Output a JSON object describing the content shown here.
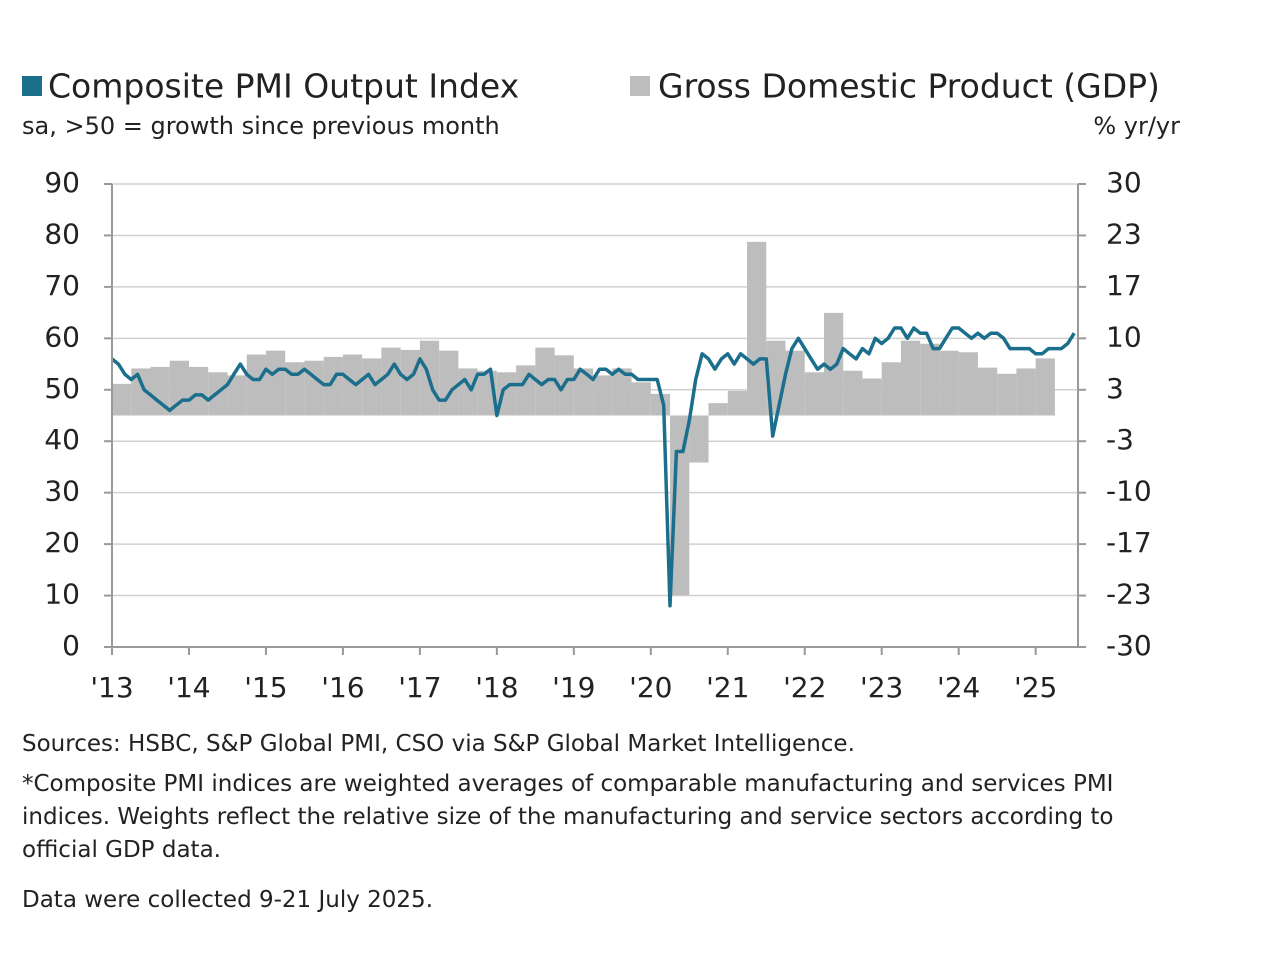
{
  "chart_data": {
    "type": "line",
    "y_label": "sa, >50 = growth since previous month",
    "y2_label": "% yr/yr",
    "xlim": [
      2013,
      2025.55
    ],
    "xticks": [
      {
        "value": 2013,
        "label": "'13"
      },
      {
        "value": 2014,
        "label": "'14"
      },
      {
        "value": 2015,
        "label": "'15"
      },
      {
        "value": 2016,
        "label": "'16"
      },
      {
        "value": 2017,
        "label": "'17"
      },
      {
        "value": 2018,
        "label": "'18"
      },
      {
        "value": 2019,
        "label": "'19"
      },
      {
        "value": 2020,
        "label": "'20"
      },
      {
        "value": 2021,
        "label": "'21"
      },
      {
        "value": 2022,
        "label": "'22"
      },
      {
        "value": 2023,
        "label": "'23"
      },
      {
        "value": 2024,
        "label": "'24"
      },
      {
        "value": 2025,
        "label": "'25"
      }
    ],
    "ylim": [
      0,
      90
    ],
    "yticks": [
      0,
      10,
      20,
      30,
      40,
      50,
      60,
      70,
      80,
      90
    ],
    "y2lim": [
      -30,
      30
    ],
    "y2ticks": [
      -30,
      {
        "value": -23.333,
        "label": "-23"
      },
      {
        "value": -16.667,
        "label": "-17"
      },
      {
        "value": -10,
        "label": "-10"
      },
      {
        "value": -3.333,
        "label": "-3"
      },
      {
        "value": 3.333,
        "label": "3"
      },
      {
        "value": 10,
        "label": "10"
      },
      {
        "value": 16.667,
        "label": "17"
      },
      {
        "value": 23.333,
        "label": "23"
      },
      30
    ],
    "grid": true,
    "series": [
      {
        "name": "Gross Domestic Product (GDP)",
        "type": "bar",
        "axis": "y2",
        "color": "#bdbdbd",
        "x": [
          2013,
          2013.25,
          2013.5,
          2013.75,
          2014,
          2014.25,
          2014.5,
          2014.75,
          2015,
          2015.25,
          2015.5,
          2015.75,
          2016,
          2016.25,
          2016.5,
          2016.75,
          2017,
          2017.25,
          2017.5,
          2017.75,
          2018,
          2018.25,
          2018.5,
          2018.75,
          2019,
          2019.25,
          2019.5,
          2019.75,
          2020,
          2020.25,
          2020.5,
          2020.75,
          2021,
          2021.25,
          2021.5,
          2021.75,
          2022,
          2022.25,
          2022.5,
          2022.75,
          2023,
          2023.25,
          2023.5,
          2023.75,
          2024,
          2024.25,
          2024.5,
          2024.75,
          2025
        ],
        "values": [
          4.1,
          6.1,
          6.3,
          7.1,
          6.3,
          5.6,
          5.2,
          7.9,
          8.4,
          6.9,
          7.1,
          7.6,
          7.9,
          7.4,
          8.8,
          8.5,
          9.7,
          8.4,
          6.1,
          5.8,
          5.6,
          6.5,
          8.8,
          7.8,
          6.1,
          5.2,
          6.1,
          4.3,
          2.8,
          -23.3,
          -6.1,
          1.6,
          3.2,
          22.5,
          9.7,
          8.4,
          5.6,
          13.3,
          5.8,
          4.8,
          6.9,
          9.7,
          9.3,
          8.4,
          8.2,
          6.2,
          5.4,
          6.1,
          7.4
        ]
      },
      {
        "name": "Composite PMI Output Index",
        "type": "line",
        "axis": "y",
        "color": "#1b6f8c",
        "x": [
          2013,
          2013.083,
          2013.167,
          2013.25,
          2013.333,
          2013.417,
          2013.5,
          2013.583,
          2013.667,
          2013.75,
          2013.833,
          2013.917,
          2014,
          2014.083,
          2014.167,
          2014.25,
          2014.333,
          2014.417,
          2014.5,
          2014.583,
          2014.667,
          2014.75,
          2014.833,
          2014.917,
          2015,
          2015.083,
          2015.167,
          2015.25,
          2015.333,
          2015.417,
          2015.5,
          2015.583,
          2015.667,
          2015.75,
          2015.833,
          2015.917,
          2016,
          2016.083,
          2016.167,
          2016.25,
          2016.333,
          2016.417,
          2016.5,
          2016.583,
          2016.667,
          2016.75,
          2016.833,
          2016.917,
          2017,
          2017.083,
          2017.167,
          2017.25,
          2017.333,
          2017.417,
          2017.5,
          2017.583,
          2017.667,
          2017.75,
          2017.833,
          2017.917,
          2018,
          2018.083,
          2018.167,
          2018.25,
          2018.333,
          2018.417,
          2018.5,
          2018.583,
          2018.667,
          2018.75,
          2018.833,
          2018.917,
          2019,
          2019.083,
          2019.167,
          2019.25,
          2019.333,
          2019.417,
          2019.5,
          2019.583,
          2019.667,
          2019.75,
          2019.833,
          2019.917,
          2020,
          2020.083,
          2020.167,
          2020.25,
          2020.333,
          2020.417,
          2020.5,
          2020.583,
          2020.667,
          2020.75,
          2020.833,
          2020.917,
          2021,
          2021.083,
          2021.167,
          2021.25,
          2021.333,
          2021.417,
          2021.5,
          2021.583,
          2021.667,
          2021.75,
          2021.833,
          2021.917,
          2022,
          2022.083,
          2022.167,
          2022.25,
          2022.333,
          2022.417,
          2022.5,
          2022.583,
          2022.667,
          2022.75,
          2022.833,
          2022.917,
          2023,
          2023.083,
          2023.167,
          2023.25,
          2023.333,
          2023.417,
          2023.5,
          2023.583,
          2023.667,
          2023.75,
          2023.833,
          2023.917,
          2024,
          2024.083,
          2024.167,
          2024.25,
          2024.333,
          2024.417,
          2024.5,
          2024.583,
          2024.667,
          2024.75,
          2024.833,
          2024.917,
          2025,
          2025.083,
          2025.167,
          2025.25,
          2025.333,
          2025.417,
          2025.5
        ],
        "values": [
          56,
          55,
          53,
          52,
          53,
          50,
          49,
          48,
          47,
          46,
          47,
          48,
          48,
          49,
          49,
          48,
          49,
          50,
          51,
          53,
          55,
          53,
          52,
          52,
          54,
          53,
          54,
          54,
          53,
          53,
          54,
          53,
          52,
          51,
          51,
          53,
          53,
          52,
          51,
          52,
          53,
          51,
          52,
          53,
          55,
          53,
          52,
          53,
          56,
          54,
          50,
          48,
          48,
          50,
          51,
          52,
          50,
          53,
          53,
          54,
          45,
          50,
          51,
          51,
          51,
          53,
          52,
          51,
          52,
          52,
          50,
          52,
          52,
          54,
          53,
          52,
          54,
          54,
          53,
          54,
          53,
          53,
          52,
          52,
          52,
          52,
          47,
          8,
          38,
          38,
          44,
          52,
          57,
          56,
          54,
          56,
          57,
          55,
          57,
          56,
          55,
          56,
          56,
          41,
          47,
          53,
          58,
          60,
          58,
          56,
          54,
          55,
          54,
          55,
          58,
          57,
          56,
          58,
          57,
          60,
          59,
          60,
          62,
          62,
          60,
          62,
          61,
          61,
          58,
          58,
          60,
          62,
          62,
          61,
          60,
          61,
          60,
          61,
          61,
          60,
          58,
          58,
          58,
          58,
          57,
          57,
          58,
          58,
          58,
          59,
          61
        ]
      }
    ],
    "sources": "Sources: HSBC, S&P Global PMI, CSO via S&P Global Market Intelligence.",
    "notes": [
      "*Composite PMI indices are weighted averages of comparable manufacturing and services PMI indices. Weights reflect the relative size of the manufacturing and service sectors according to official GDP data.",
      "Data were collected 9-21 July 2025."
    ]
  }
}
